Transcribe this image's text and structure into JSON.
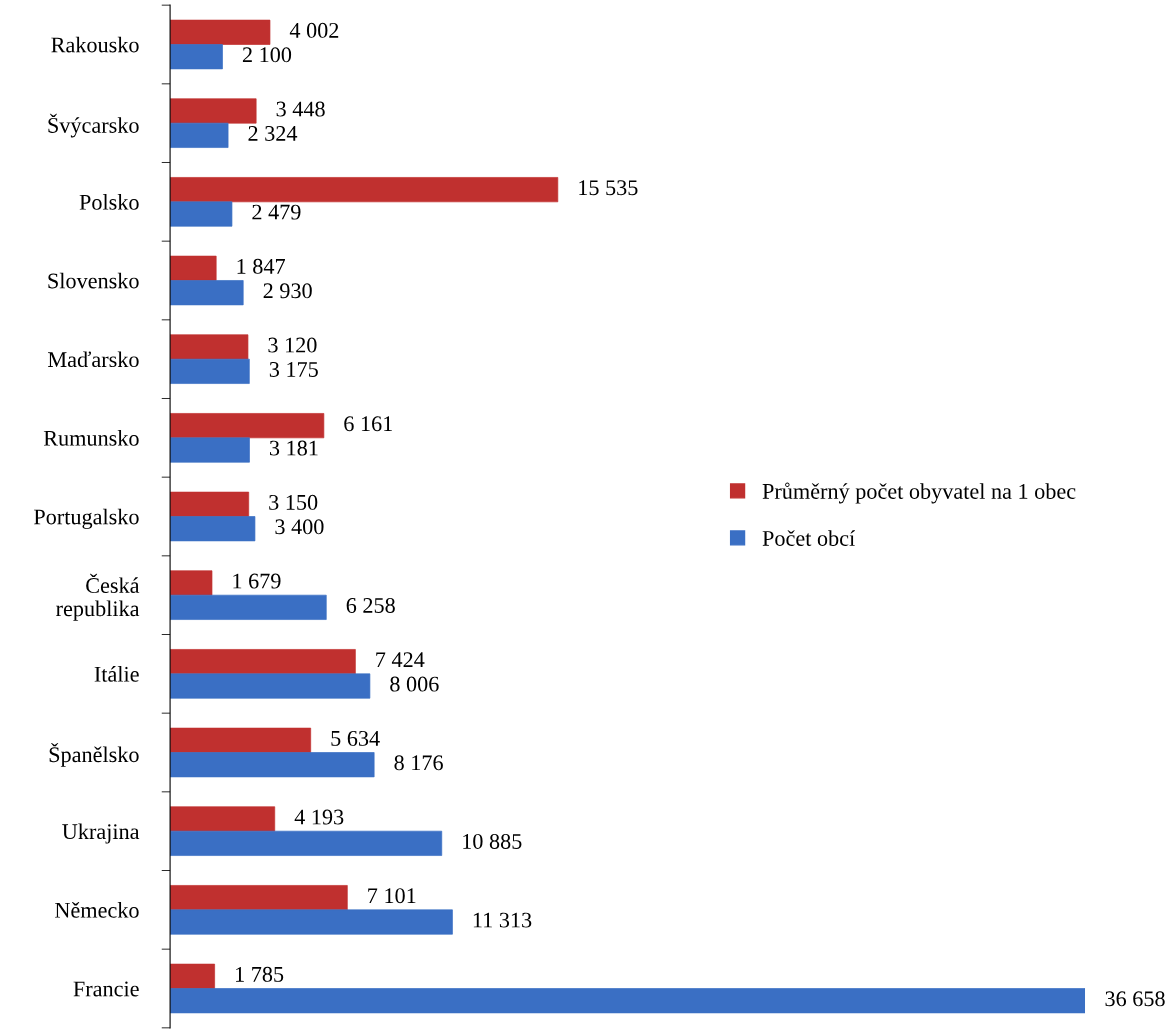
{
  "chart_data": {
    "type": "bar",
    "orientation": "horizontal",
    "legend": "right",
    "grid": false,
    "categories": [
      "Rakousko",
      "Švýcarsko",
      "Polsko",
      "Slovensko",
      "Maďarsko",
      "Rumunsko",
      "Portugalsko",
      "Česká republika",
      "Itálie",
      "Španělsko",
      "Ukrajina",
      "Německo",
      "Francie"
    ],
    "series": [
      {
        "name": "Průměrný počet obyvatel na 1 obec",
        "color": "#c0302f",
        "values": [
          4002,
          3448,
          15535,
          1847,
          3120,
          6161,
          3150,
          1679,
          7424,
          5634,
          4193,
          7101,
          1785
        ],
        "value_labels": [
          "4 002",
          "3 448",
          "15 535",
          "1 847",
          "3 120",
          "6 161",
          "3 150",
          "1 679",
          "7 424",
          "5 634",
          "4 193",
          "7 101",
          "1 785"
        ]
      },
      {
        "name": "Počet obcí",
        "color": "#3a6fc4",
        "values": [
          2100,
          2324,
          2479,
          2930,
          3175,
          3181,
          3400,
          6258,
          8006,
          8176,
          10885,
          11313,
          36658
        ],
        "value_labels": [
          "2 100",
          "2 324",
          "2 479",
          "2 930",
          "3 175",
          "3 181",
          "3 400",
          "6 258",
          "8 006",
          "8 176",
          "10 885",
          "11 313",
          "36 658"
        ]
      }
    ]
  }
}
